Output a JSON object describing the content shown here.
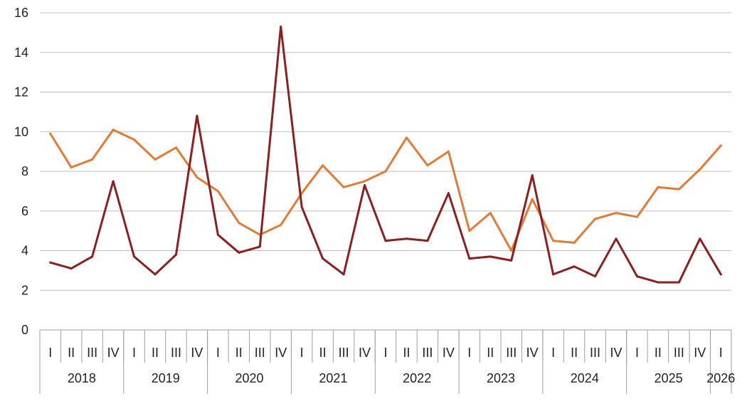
{
  "chart_data": {
    "type": "line",
    "title": "",
    "xlabel": "",
    "ylabel": "",
    "ylim": [
      0,
      16
    ],
    "yticks": [
      "0",
      "2",
      "4",
      "6",
      "8",
      "10",
      "12",
      "14",
      "16"
    ],
    "grid": true,
    "legend": "none",
    "categories": [
      "2018 I",
      "2018 II",
      "2018 III",
      "2018 IV",
      "2019 I",
      "2019 II",
      "2019 III",
      "2019 IV",
      "2020 I",
      "2020 II",
      "2020 III",
      "2020 IV",
      "2021 I",
      "2021 II",
      "2021 III",
      "2021 IV",
      "2022 I",
      "2022 II",
      "2022 III",
      "2022 IV",
      "2023 I",
      "2023 II",
      "2023 III",
      "2023 IV",
      "2024 I",
      "2024 II",
      "2024 III",
      "2024 IV",
      "2025 I",
      "2025 II",
      "2025 III",
      "2025 IV",
      "2026 I"
    ],
    "quarter_labels": [
      "I",
      "II",
      "III",
      "IV",
      "I",
      "II",
      "III",
      "IV",
      "I",
      "II",
      "III",
      "IV",
      "I",
      "II",
      "III",
      "IV",
      "I",
      "II",
      "III",
      "IV",
      "I",
      "II",
      "III",
      "IV",
      "I",
      "II",
      "III",
      "IV",
      "I",
      "II",
      "III",
      "IV",
      "I"
    ],
    "years": [
      {
        "label": "2018",
        "quarters": 4
      },
      {
        "label": "2019",
        "quarters": 4
      },
      {
        "label": "2020",
        "quarters": 4
      },
      {
        "label": "2021",
        "quarters": 4
      },
      {
        "label": "2022",
        "quarters": 4
      },
      {
        "label": "2023",
        "quarters": 4
      },
      {
        "label": "2024",
        "quarters": 4
      },
      {
        "label": "2025",
        "quarters": 4
      },
      {
        "label": "2026",
        "quarters": 1
      }
    ],
    "series": [
      {
        "color": "#e07b39",
        "values": [
          9.9,
          8.2,
          8.6,
          10.1,
          9.6,
          8.6,
          9.2,
          7.7,
          7.0,
          5.4,
          4.8,
          5.3,
          6.9,
          8.3,
          7.2,
          7.5,
          8.0,
          9.7,
          8.3,
          9.0,
          5.0,
          5.9,
          4.0,
          6.6,
          4.5,
          4.4,
          5.6,
          5.9,
          5.7,
          7.2,
          7.1,
          8.1,
          9.3
        ]
      },
      {
        "color": "#8b2020",
        "values": [
          3.4,
          3.1,
          3.7,
          7.5,
          3.7,
          2.8,
          3.8,
          10.8,
          4.8,
          3.9,
          4.2,
          15.3,
          6.2,
          3.6,
          2.8,
          7.3,
          4.5,
          4.6,
          4.5,
          6.9,
          3.6,
          3.7,
          3.5,
          7.8,
          2.8,
          3.2,
          2.7,
          4.6,
          2.7,
          2.4,
          2.4,
          4.6,
          2.8
        ]
      }
    ]
  }
}
